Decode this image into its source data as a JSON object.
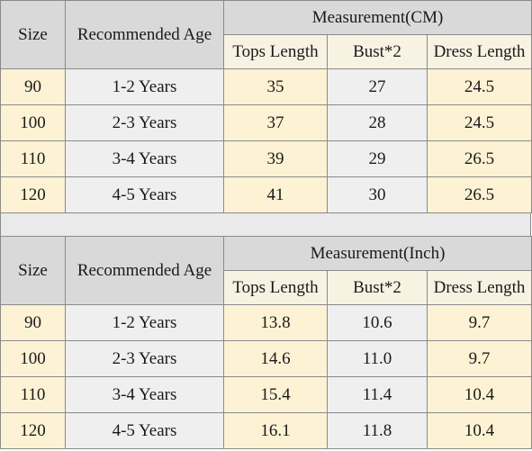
{
  "tables": [
    {
      "header": {
        "size": "Size",
        "age": "Recommended Age",
        "group": "Measurement(CM)",
        "tops": "Tops Length",
        "bust": "Bust*2",
        "dress": "Dress Length"
      },
      "rows": [
        {
          "size": "90",
          "age": "1-2 Years",
          "tops": "35",
          "bust": "27",
          "dress": "24.5"
        },
        {
          "size": "100",
          "age": "2-3 Years",
          "tops": "37",
          "bust": "28",
          "dress": "24.5"
        },
        {
          "size": "110",
          "age": "3-4 Years",
          "tops": "39",
          "bust": "29",
          "dress": "26.5"
        },
        {
          "size": "120",
          "age": "4-5 Years",
          "tops": "41",
          "bust": "30",
          "dress": "26.5"
        }
      ]
    },
    {
      "header": {
        "size": "Size",
        "age": "Recommended Age",
        "group": "Measurement(Inch)",
        "tops": "Tops Length",
        "bust": "Bust*2",
        "dress": "Dress Length"
      },
      "rows": [
        {
          "size": "90",
          "age": "1-2 Years",
          "tops": "13.8",
          "bust": "10.6",
          "dress": "9.7"
        },
        {
          "size": "100",
          "age": "2-3 Years",
          "tops": "14.6",
          "bust": "11.0",
          "dress": "9.7"
        },
        {
          "size": "110",
          "age": "3-4 Years",
          "tops": "15.4",
          "bust": "11.4",
          "dress": "10.4"
        },
        {
          "size": "120",
          "age": "4-5 Years",
          "tops": "16.1",
          "bust": "11.8",
          "dress": "10.4"
        }
      ]
    }
  ]
}
